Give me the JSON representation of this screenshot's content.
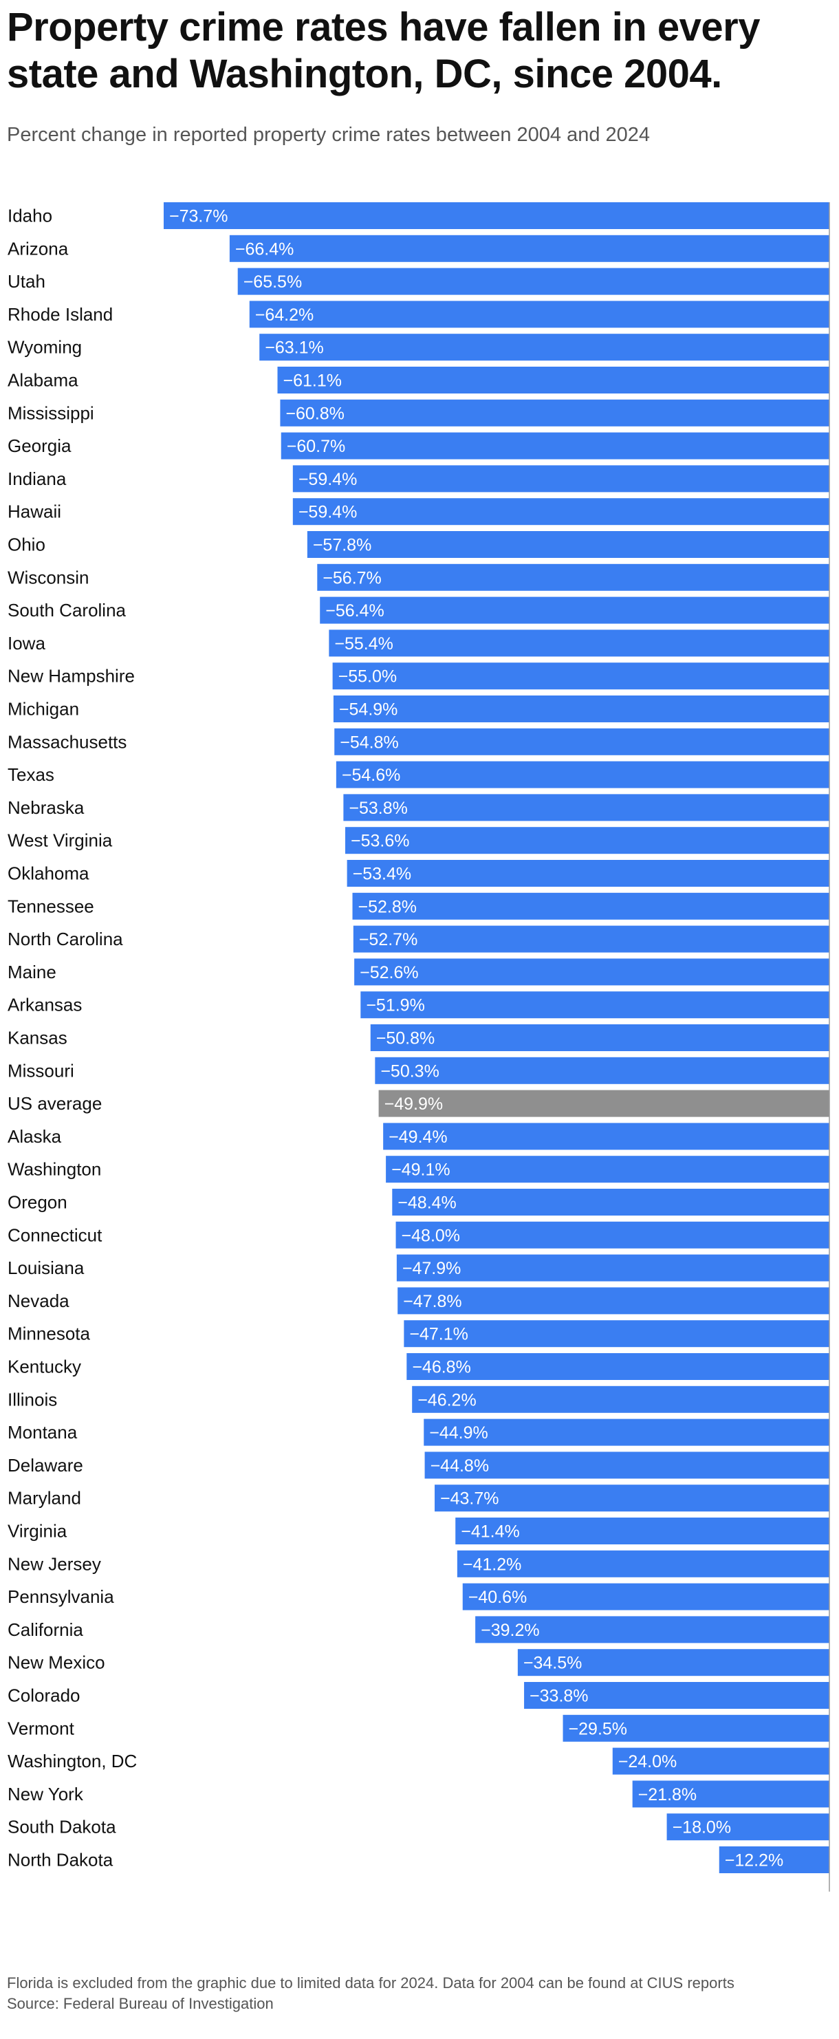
{
  "chart_data": {
    "type": "bar",
    "orientation": "horizontal",
    "title": "Property crime rates have fallen in every state and Washington, DC, since 2004.",
    "subtitle": "Percent change in reported property crime rates between 2004 and 2024",
    "categories": [
      "Idaho",
      "Arizona",
      "Utah",
      "Rhode Island",
      "Wyoming",
      "Alabama",
      "Mississippi",
      "Georgia",
      "Indiana",
      "Hawaii",
      "Ohio",
      "Wisconsin",
      "South Carolina",
      "Iowa",
      "New Hampshire",
      "Michigan",
      "Massachusetts",
      "Texas",
      "Nebraska",
      "West Virginia",
      "Oklahoma",
      "Tennessee",
      "North Carolina",
      "Maine",
      "Arkansas",
      "Kansas",
      "Missouri",
      "US average",
      "Alaska",
      "Washington",
      "Oregon",
      "Connecticut",
      "Louisiana",
      "Nevada",
      "Minnesota",
      "Kentucky",
      "Illinois",
      "Montana",
      "Delaware",
      "Maryland",
      "Virginia",
      "New Jersey",
      "Pennsylvania",
      "California",
      "New Mexico",
      "Colorado",
      "Vermont",
      "Washington, DC",
      "New York",
      "South Dakota",
      "North Dakota"
    ],
    "values": [
      -73.7,
      -66.4,
      -65.5,
      -64.2,
      -63.1,
      -61.1,
      -60.8,
      -60.7,
      -59.4,
      -59.4,
      -57.8,
      -56.7,
      -56.4,
      -55.4,
      -55.0,
      -54.9,
      -54.8,
      -54.6,
      -53.8,
      -53.6,
      -53.4,
      -52.8,
      -52.7,
      -52.6,
      -51.9,
      -50.8,
      -50.3,
      -49.9,
      -49.4,
      -49.1,
      -48.4,
      -48.0,
      -47.9,
      -47.8,
      -47.1,
      -46.8,
      -46.2,
      -44.9,
      -44.8,
      -43.7,
      -41.4,
      -41.2,
      -40.6,
      -39.2,
      -34.5,
      -33.8,
      -29.5,
      -24.0,
      -21.8,
      -18.0,
      -12.2
    ],
    "labels": [
      "−73.7%",
      "−66.4%",
      "−65.5%",
      "−64.2%",
      "−63.1%",
      "−61.1%",
      "−60.8%",
      "−60.7%",
      "−59.4%",
      "−59.4%",
      "−57.8%",
      "−56.7%",
      "−56.4%",
      "−55.4%",
      "−55.0%",
      "−54.9%",
      "−54.8%",
      "−54.6%",
      "−53.8%",
      "−53.6%",
      "−53.4%",
      "−52.8%",
      "−52.7%",
      "−52.6%",
      "−51.9%",
      "−50.8%",
      "−50.3%",
      "−49.9%",
      "−49.4%",
      "−49.1%",
      "−48.4%",
      "−48.0%",
      "−47.9%",
      "−47.8%",
      "−47.1%",
      "−46.8%",
      "−46.2%",
      "−44.9%",
      "−44.8%",
      "−43.7%",
      "−41.4%",
      "−41.2%",
      "−40.6%",
      "−39.2%",
      "−34.5%",
      "−33.8%",
      "−29.5%",
      "−24.0%",
      "−21.8%",
      "−18.0%",
      "−12.2%"
    ],
    "highlight_category": "US average",
    "xlim": [
      -73.7,
      0
    ],
    "grid": false,
    "legend": "none",
    "colors": {
      "bar": "#3a7ef2",
      "highlight": "#8f8f8f",
      "label_text": "#ffffff",
      "axis": "#999999"
    }
  },
  "footnote": "Florida is excluded from the graphic due to limited data for 2024. Data for 2004 can be found at CIUS reports",
  "source": "Source: Federal Bureau of Investigation"
}
